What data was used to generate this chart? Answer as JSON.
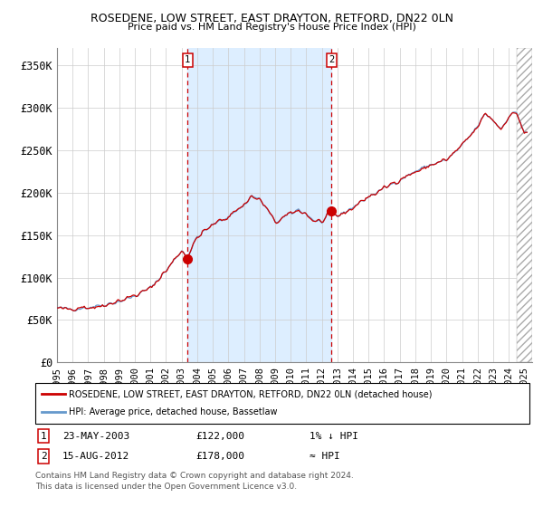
{
  "title": "ROSEDENE, LOW STREET, EAST DRAYTON, RETFORD, DN22 0LN",
  "subtitle": "Price paid vs. HM Land Registry's House Price Index (HPI)",
  "ylabel_ticks": [
    "£0",
    "£50K",
    "£100K",
    "£150K",
    "£200K",
    "£250K",
    "£300K",
    "£350K"
  ],
  "ytick_vals": [
    0,
    50000,
    100000,
    150000,
    200000,
    250000,
    300000,
    350000
  ],
  "ylim": [
    0,
    370000
  ],
  "xlim_start": 1995.0,
  "xlim_end": 2025.5,
  "transaction1": {
    "date_str": "23-MAY-2003",
    "year": 2003.38,
    "price": 122000,
    "label": "1",
    "note": "1% ↓ HPI"
  },
  "transaction2": {
    "date_str": "15-AUG-2012",
    "year": 2012.62,
    "price": 178000,
    "label": "2",
    "note": "≈ HPI"
  },
  "hpi_color": "#6699cc",
  "price_color": "#cc0000",
  "dot_color": "#cc0000",
  "shade_color": "#ddeeff",
  "grid_color": "#cccccc",
  "dashed_color": "#cc0000",
  "bg_color": "#ffffff",
  "legend_label1": "ROSEDENE, LOW STREET, EAST DRAYTON, RETFORD, DN22 0LN (detached house)",
  "legend_label2": "HPI: Average price, detached house, Bassetlaw",
  "footnote1": "Contains HM Land Registry data © Crown copyright and database right 2024.",
  "footnote2": "This data is licensed under the Open Government Licence v3.0.",
  "hatch_color": "#aaaaaa",
  "hatch_end": 2024.5
}
